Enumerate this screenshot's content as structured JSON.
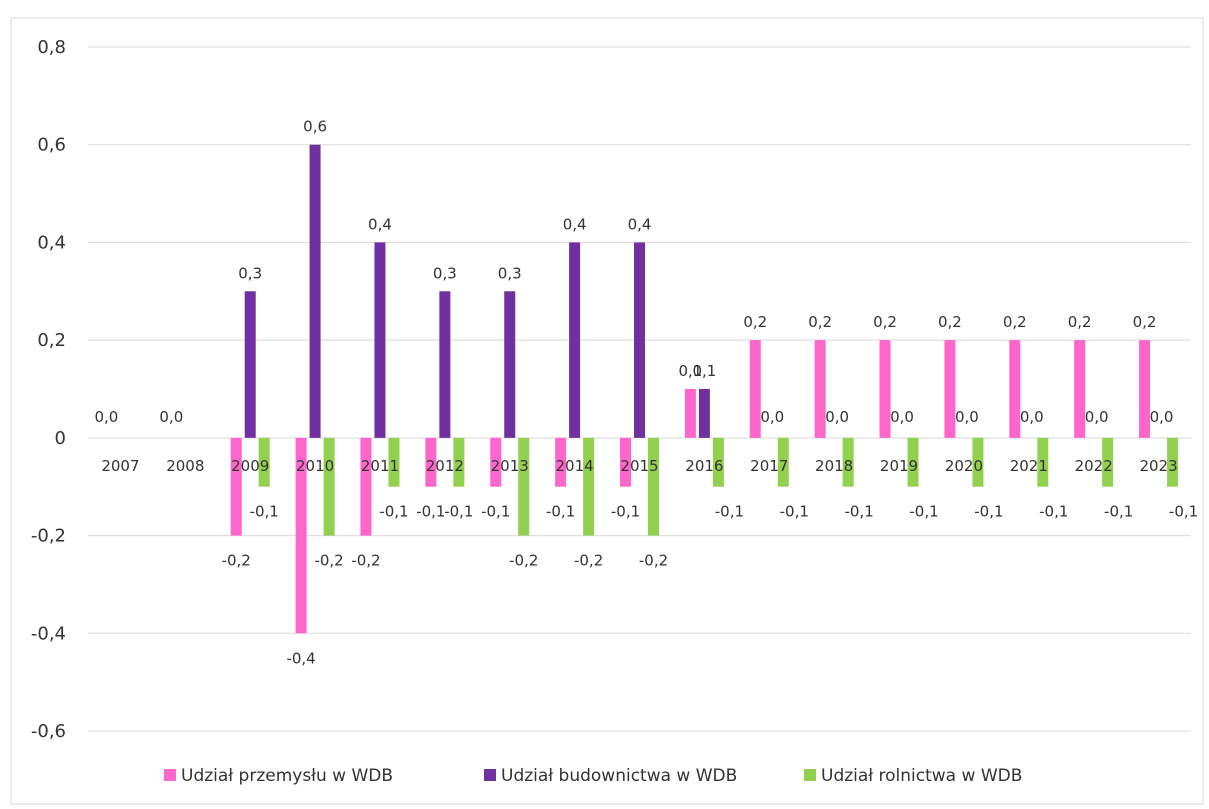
{
  "chart_data": {
    "type": "bar",
    "categories": [
      "2007",
      "2008",
      "2009",
      "2010",
      "2011",
      "2012",
      "2013",
      "2014",
      "2015",
      "2016",
      "2017",
      "2018",
      "2019",
      "2020",
      "2021",
      "2022",
      "2023"
    ],
    "series": [
      {
        "name": "Udział przemysłu w WDB",
        "color": "#ff66cc",
        "values": [
          0.0,
          0.0,
          -0.2,
          -0.4,
          -0.2,
          -0.1,
          -0.1,
          -0.1,
          -0.1,
          0.1,
          0.2,
          0.2,
          0.2,
          0.2,
          0.2,
          0.2,
          0.2
        ],
        "labels": [
          "0,0",
          "0,0",
          "-0,2",
          "-0,4",
          "-0,2",
          "-0,1",
          "-0,1",
          "-0,1",
          "-0,1",
          "0,1",
          "0,2",
          "0,2",
          "0,2",
          "0,2",
          "0,2",
          "0,2",
          "0,2"
        ]
      },
      {
        "name": "Udział budownictwa w WDB",
        "color": "#7030a0",
        "values": [
          null,
          null,
          0.3,
          0.6,
          0.4,
          0.3,
          0.3,
          0.4,
          0.4,
          0.1,
          null,
          null,
          null,
          null,
          null,
          null,
          null
        ],
        "labels": [
          "",
          "",
          "0,3",
          "0,6",
          "0,4",
          "0,3",
          "0,3",
          "0,4",
          "0,4",
          "0,1",
          "",
          "",
          "",
          "",
          "",
          "",
          ""
        ]
      },
      {
        "name": "Udział rolnictwa w WDB",
        "color": "#92d050",
        "values": [
          null,
          null,
          -0.1,
          -0.2,
          -0.1,
          -0.1,
          -0.2,
          -0.2,
          -0.2,
          -0.1,
          -0.1,
          -0.1,
          -0.1,
          -0.1,
          -0.1,
          -0.1,
          -0.1
        ],
        "labels": [
          "",
          "",
          "-0,1",
          "-0,2",
          "-0,1",
          "-0,1",
          "-0,2",
          "-0,2",
          "-0,2",
          "-0,1",
          "-0,1",
          "-0,1",
          "-0,1",
          "-0,1",
          "-0,1",
          "-0,1",
          "-0,1"
        ]
      }
    ],
    "extra_labels": [
      {
        "category": "2017",
        "series": "Udział budownictwa w WDB",
        "text": "0,0"
      },
      {
        "category": "2018",
        "series": "Udział budownictwa w WDB",
        "text": "0,0"
      },
      {
        "category": "2019",
        "series": "Udział budownictwa w WDB",
        "text": "0,0"
      },
      {
        "category": "2020",
        "series": "Udział budownictwa w WDB",
        "text": "0,0"
      },
      {
        "category": "2021",
        "series": "Udział budownictwa w WDB",
        "text": "0,0"
      },
      {
        "category": "2022",
        "series": "Udział budownictwa w WDB",
        "text": "0,0"
      },
      {
        "category": "2023",
        "series": "Udział budownictwa w WDB",
        "text": "0,0"
      }
    ],
    "yticks": [
      -0.6,
      -0.4,
      -0.2,
      0,
      0.2,
      0.4,
      0.6,
      0.8
    ],
    "ytick_labels": [
      "-0,6",
      "-0,4",
      "-0,2",
      "0",
      "0,2",
      "0,4",
      "0,6",
      "0,8"
    ],
    "ylim": [
      -0.6,
      0.8
    ],
    "grid": true,
    "legend_position": "bottom",
    "title": "",
    "xlabel": "",
    "ylabel": ""
  }
}
